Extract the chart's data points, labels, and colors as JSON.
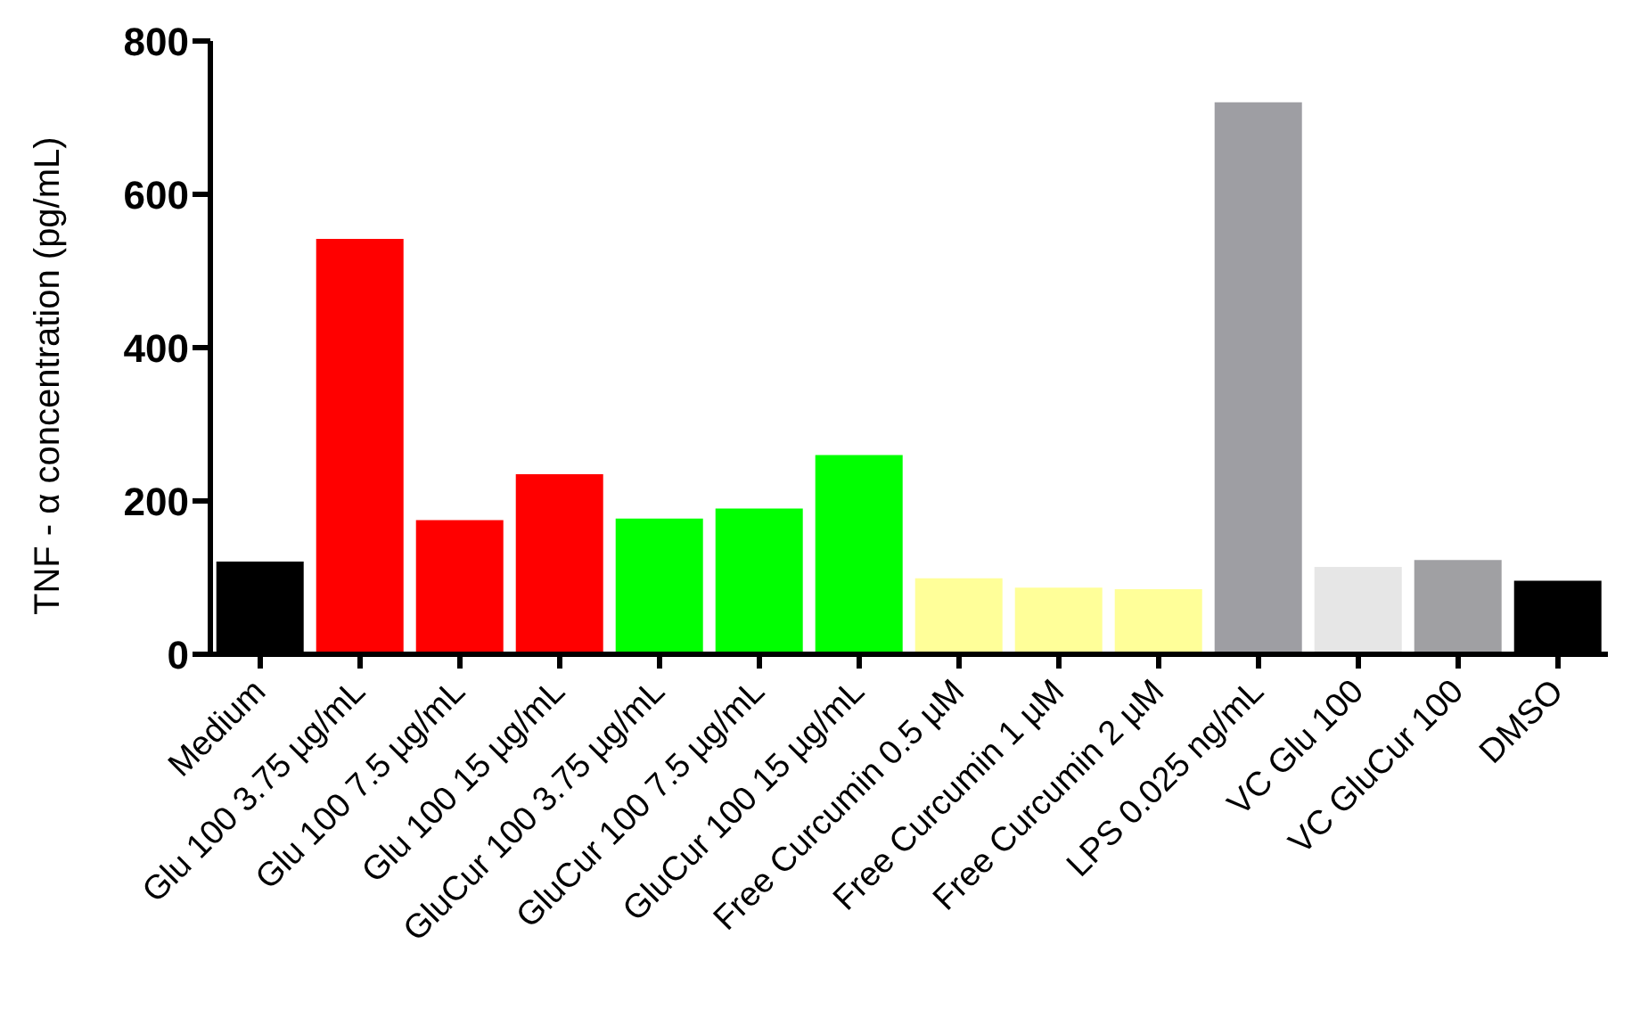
{
  "chart_data": {
    "type": "bar",
    "ylabel": "TNF - α concentration (pg/mL)",
    "categories": [
      "Medium",
      "Glu 100 3.75 µg/mL",
      "Glu 100 7.5 µg/mL",
      "Glu 100 15 µg/mL",
      "GluCur 100 3.75 µg/mL",
      "GluCur 100 7.5 µg/mL",
      "GluCur 100 15 µg/mL",
      "Free Curcumin 0.5 µM",
      "Free Curcumin 1 µM",
      "Free Curcumin 2 µM",
      "LPS 0.025 ng/mL",
      "VC Glu 100",
      "VC GluCur 100",
      "DMSO"
    ],
    "values": [
      121,
      542,
      175,
      235,
      177,
      190,
      260,
      99,
      87,
      85,
      720,
      114,
      123,
      96
    ],
    "colors": [
      "#000000",
      "#ff0000",
      "#ff0000",
      "#ff0000",
      "#00ff00",
      "#00ff00",
      "#00ff00",
      "#ffff99",
      "#ffff99",
      "#ffff99",
      "#9e9ea3",
      "#e6e6e6",
      "#a0a0a3",
      "#000000"
    ],
    "ylim": [
      0,
      800
    ],
    "yticks": [
      0,
      200,
      400,
      600,
      800
    ],
    "grid": false,
    "legend": false
  }
}
